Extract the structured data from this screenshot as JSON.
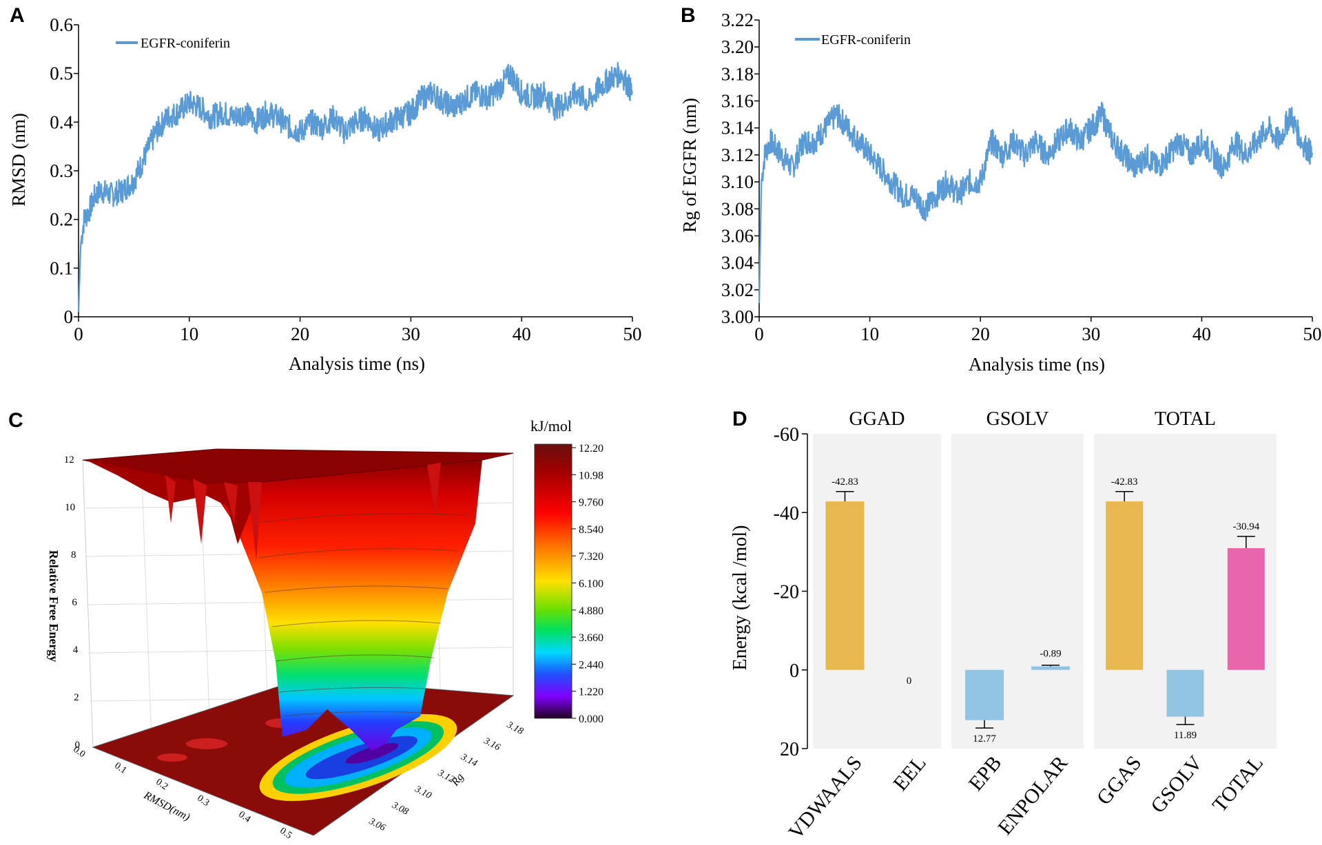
{
  "chart_data": [
    {
      "panel": "A",
      "type": "line",
      "xlabel": "Analysis time (ns)",
      "ylabel": "RMSD (nm)",
      "xlim": [
        0,
        50
      ],
      "ylim": [
        0,
        0.6
      ],
      "xticks": [
        "0",
        "10",
        "20",
        "30",
        "40",
        "50"
      ],
      "yticks": [
        "0",
        "0.1",
        "0.2",
        "0.3",
        "0.4",
        "0.5",
        "0.6"
      ],
      "legend": "top-left",
      "series": [
        {
          "name": "EGFR-coniferin",
          "color": "#5b9bd5",
          "x": [
            0,
            0.2,
            0.5,
            1,
            1.5,
            2,
            3,
            4,
            5,
            6,
            7,
            8,
            9,
            10,
            11,
            12,
            13,
            14,
            15,
            16,
            17,
            18,
            19,
            20,
            21,
            22,
            23,
            24,
            25,
            26,
            27,
            28,
            29,
            30,
            31,
            32,
            33,
            34,
            35,
            36,
            37,
            38,
            39,
            40,
            41,
            42,
            43,
            44,
            45,
            46,
            47,
            48,
            49,
            50
          ],
          "y": [
            0.01,
            0.15,
            0.2,
            0.22,
            0.25,
            0.26,
            0.25,
            0.26,
            0.28,
            0.33,
            0.38,
            0.41,
            0.42,
            0.44,
            0.43,
            0.41,
            0.42,
            0.41,
            0.42,
            0.4,
            0.42,
            0.41,
            0.39,
            0.38,
            0.4,
            0.39,
            0.41,
            0.38,
            0.4,
            0.41,
            0.38,
            0.4,
            0.41,
            0.42,
            0.45,
            0.46,
            0.44,
            0.43,
            0.45,
            0.46,
            0.45,
            0.47,
            0.5,
            0.46,
            0.45,
            0.46,
            0.43,
            0.44,
            0.46,
            0.44,
            0.47,
            0.49,
            0.5,
            0.46
          ]
        }
      ]
    },
    {
      "panel": "B",
      "type": "line",
      "xlabel": "Analysis time (ns)",
      "ylabel": "Rg of EGFR (nm)",
      "xlim": [
        0,
        50
      ],
      "ylim": [
        3.0,
        3.22
      ],
      "xticks": [
        "0",
        "10",
        "20",
        "30",
        "40",
        "50"
      ],
      "yticks": [
        "3.00",
        "3.02",
        "3.04",
        "3.06",
        "3.08",
        "3.10",
        "3.12",
        "3.14",
        "3.16",
        "3.18",
        "3.20",
        "3.22"
      ],
      "legend": "top-left",
      "series": [
        {
          "name": "EGFR-coniferin",
          "color": "#5b9bd5",
          "x": [
            0,
            0.2,
            0.5,
            1,
            2,
            3,
            4,
            5,
            6,
            7,
            8,
            9,
            10,
            11,
            12,
            13,
            14,
            15,
            16,
            17,
            18,
            19,
            20,
            21,
            22,
            23,
            24,
            25,
            26,
            27,
            28,
            29,
            30,
            31,
            32,
            33,
            34,
            35,
            36,
            37,
            38,
            39,
            40,
            41,
            42,
            43,
            44,
            45,
            46,
            47,
            48,
            49,
            50
          ],
          "y": [
            3.01,
            3.1,
            3.12,
            3.13,
            3.12,
            3.11,
            3.13,
            3.13,
            3.14,
            3.15,
            3.14,
            3.13,
            3.12,
            3.11,
            3.1,
            3.09,
            3.09,
            3.08,
            3.09,
            3.1,
            3.09,
            3.1,
            3.1,
            3.13,
            3.12,
            3.13,
            3.12,
            3.13,
            3.12,
            3.13,
            3.14,
            3.13,
            3.14,
            3.15,
            3.13,
            3.12,
            3.11,
            3.12,
            3.11,
            3.12,
            3.13,
            3.12,
            3.13,
            3.12,
            3.11,
            3.13,
            3.12,
            3.13,
            3.14,
            3.13,
            3.15,
            3.13,
            3.12
          ]
        }
      ]
    },
    {
      "panel": "C",
      "type": "surface",
      "zlabel": "Relative Free Energy",
      "xlabel": "RMSD(nm)",
      "ylabel": "Rg",
      "colorbar_title": "kJ/mol",
      "colorbar_ticks": [
        "12.20",
        "10.98",
        "9.760",
        "8.540",
        "7.320",
        "6.100",
        "4.880",
        "3.660",
        "2.440",
        "1.220",
        "0.000"
      ],
      "zticks": [
        "0",
        "2",
        "4",
        "6",
        "8",
        "10",
        "12"
      ],
      "xticks": [
        "0.0",
        "0.1",
        "0.2",
        "0.3",
        "0.4",
        "0.5"
      ],
      "yticks": [
        "3.06",
        "3.08",
        "3.10",
        "3.12",
        "3.14",
        "3.16",
        "3.18"
      ]
    },
    {
      "panel": "D",
      "type": "bar",
      "ylabel": "Energy (kcal /mol)",
      "ylim": [
        20,
        -60
      ],
      "yticks": [
        "-60",
        "-40",
        "-20",
        "0",
        "20"
      ],
      "groups": [
        {
          "title": "GGAD",
          "categories": [
            "VDWAALS",
            "EEL"
          ],
          "values": [
            -42.83,
            0
          ],
          "labels": [
            "-42.83",
            "0"
          ],
          "colors": [
            "#e8b850",
            "#e8b850"
          ],
          "errors": [
            2.5,
            0
          ]
        },
        {
          "title": "GSOLV",
          "categories": [
            "EPB",
            "ENPOLAR"
          ],
          "values": [
            12.77,
            -0.89
          ],
          "labels": [
            "12.77",
            "-0.89"
          ],
          "colors": [
            "#94c4e4",
            "#94c4e4"
          ],
          "errors": [
            2.0,
            0.3
          ]
        },
        {
          "title": "TOTAL",
          "categories": [
            "GGAS",
            "GSOLV",
            "TOTAL"
          ],
          "values": [
            -42.83,
            11.89,
            -30.94
          ],
          "labels": [
            "-42.83",
            "11.89",
            "-30.94"
          ],
          "colors": [
            "#e8b850",
            "#94c4e4",
            "#e866ac"
          ],
          "errors": [
            2.5,
            2.0,
            3.0
          ]
        }
      ]
    }
  ],
  "panels": {
    "a": "A",
    "b": "B",
    "c": "C",
    "d": "D"
  }
}
